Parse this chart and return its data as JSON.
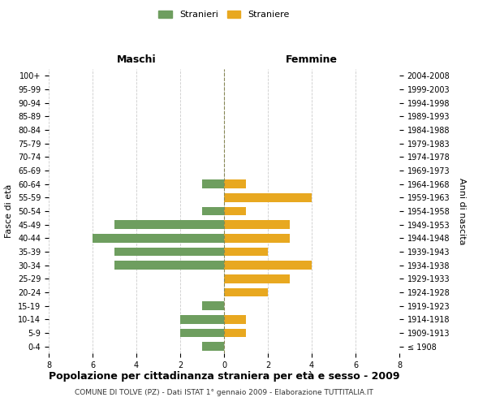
{
  "age_groups": [
    "100+",
    "95-99",
    "90-94",
    "85-89",
    "80-84",
    "75-79",
    "70-74",
    "65-69",
    "60-64",
    "55-59",
    "50-54",
    "45-49",
    "40-44",
    "35-39",
    "30-34",
    "25-29",
    "20-24",
    "15-19",
    "10-14",
    "5-9",
    "0-4"
  ],
  "birth_years": [
    "≤ 1908",
    "1909-1913",
    "1914-1918",
    "1919-1923",
    "1924-1928",
    "1929-1933",
    "1934-1938",
    "1939-1943",
    "1944-1948",
    "1949-1953",
    "1954-1958",
    "1959-1963",
    "1964-1968",
    "1969-1973",
    "1974-1978",
    "1979-1983",
    "1984-1988",
    "1989-1993",
    "1994-1998",
    "1999-2003",
    "2004-2008"
  ],
  "maschi": [
    0,
    0,
    0,
    0,
    0,
    0,
    0,
    0,
    1,
    0,
    1,
    5,
    6,
    5,
    5,
    0,
    0,
    1,
    2,
    2,
    1
  ],
  "femmine": [
    0,
    0,
    0,
    0,
    0,
    0,
    0,
    0,
    1,
    4,
    1,
    3,
    3,
    2,
    4,
    3,
    2,
    0,
    1,
    1,
    0
  ],
  "maschi_color": "#6e9e5f",
  "femmine_color": "#e8a820",
  "title": "Popolazione per cittadinanza straniera per età e sesso - 2009",
  "subtitle": "COMUNE DI TOLVE (PZ) - Dati ISTAT 1° gennaio 2009 - Elaborazione TUTTITALIA.IT",
  "xlabel_left": "Maschi",
  "xlabel_right": "Femmine",
  "ylabel_left": "Fasce di età",
  "ylabel_right": "Anni di nascita",
  "legend_maschi": "Stranieri",
  "legend_femmine": "Straniere",
  "xlim": 8,
  "background_color": "#ffffff",
  "grid_color": "#cccccc"
}
